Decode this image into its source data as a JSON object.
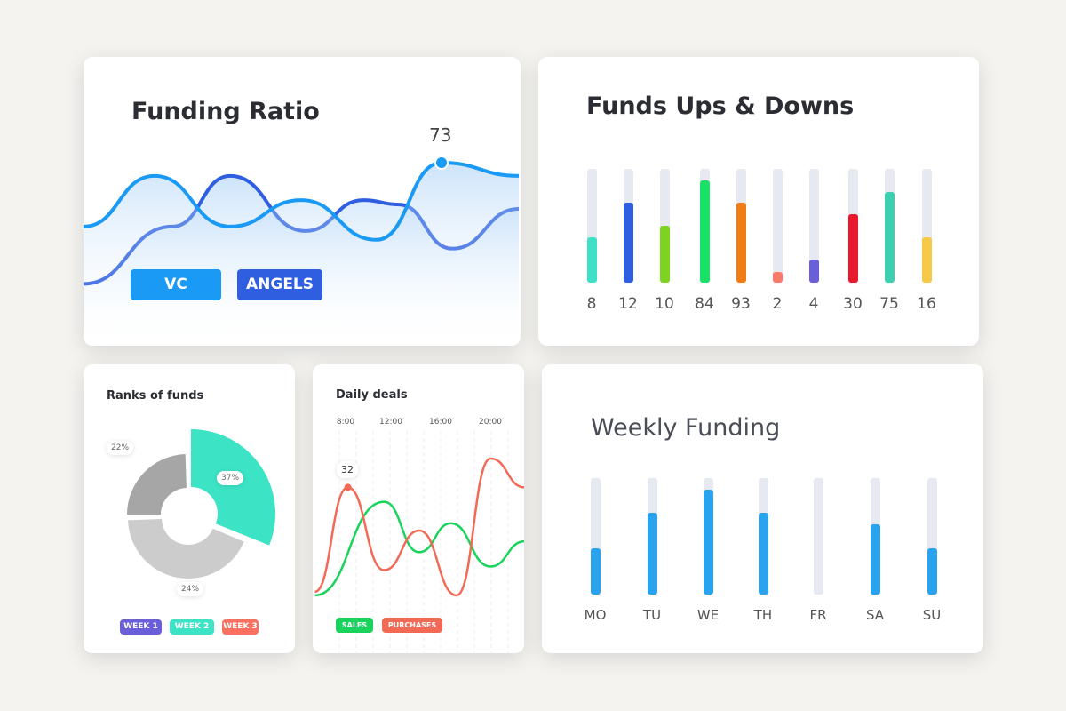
{
  "chart_data": [
    {
      "type": "line",
      "title": "Funding Ratio",
      "series": [
        {
          "name": "VC",
          "color": "#1a9af5",
          "values": [
            44,
            67,
            44,
            56,
            38,
            73,
            67
          ]
        },
        {
          "name": "ANGELS",
          "color": "#2f5fe0",
          "values": [
            18,
            44,
            67,
            42,
            56,
            54,
            34,
            52
          ]
        }
      ],
      "highlight": {
        "series": "VC",
        "value": 73,
        "label": "73"
      }
    },
    {
      "type": "bar",
      "title": "Funds Ups & Downs",
      "categories": [
        "8",
        "12",
        "10",
        "84",
        "93",
        "2",
        "4",
        "30",
        "75",
        "16"
      ],
      "fill_fraction": [
        0.4,
        0.7,
        0.5,
        0.9,
        0.7,
        0.09,
        0.2,
        0.6,
        0.8,
        0.4
      ],
      "colors": [
        "#3ee0c8",
        "#2f5fe0",
        "#7ed321",
        "#19e066",
        "#f07d14",
        "#fa7a6a",
        "#6a5fd8",
        "#e8192c",
        "#3ecfb0",
        "#f7c948"
      ]
    },
    {
      "type": "pie",
      "title": "Ranks of funds",
      "slices": [
        {
          "name": "WEEK 1",
          "label": "22%",
          "value": 22,
          "color": "#a6a6a6"
        },
        {
          "name": "WEEK 2",
          "label": "37%",
          "value": 37,
          "color": "#3de3c5"
        },
        {
          "name": "WEEK 3",
          "label": "24%",
          "value": 24,
          "color": "#cccccc"
        }
      ],
      "legend": [
        {
          "label": "WEEK 1",
          "color": "#6a5fd8"
        },
        {
          "label": "WEEK 2",
          "color": "#3de3c5"
        },
        {
          "label": "WEEK 3",
          "color": "#fa7060"
        }
      ]
    },
    {
      "type": "line",
      "title": "Daily deals",
      "x_ticks": [
        "8:00",
        "12:00",
        "16:00",
        "20:00"
      ],
      "series": [
        {
          "name": "SALES",
          "color": "#19d35c",
          "x": [
            5.3,
            11.4,
            14.5,
            17.3,
            20.8,
            23.8
          ],
          "values": [
            2,
            28,
            14,
            22,
            10,
            17
          ]
        },
        {
          "name": "PURCHASES",
          "color": "#f26a55",
          "x": [
            5.3,
            8.2,
            11.4,
            14.5,
            17.8,
            20.8,
            23.8
          ],
          "values": [
            3,
            32,
            9,
            20,
            2,
            40,
            32
          ]
        }
      ],
      "highlight": {
        "series": "PURCHASES",
        "value": 32,
        "label": "32"
      }
    },
    {
      "type": "bar",
      "title": "Weekly Funding",
      "categories": [
        "MO",
        "TU",
        "WE",
        "TH",
        "FR",
        "SA",
        "SU"
      ],
      "fill_fraction": [
        0.4,
        0.7,
        0.9,
        0.7,
        0,
        0.6,
        0.4
      ],
      "color": "#2aa3ee"
    }
  ]
}
